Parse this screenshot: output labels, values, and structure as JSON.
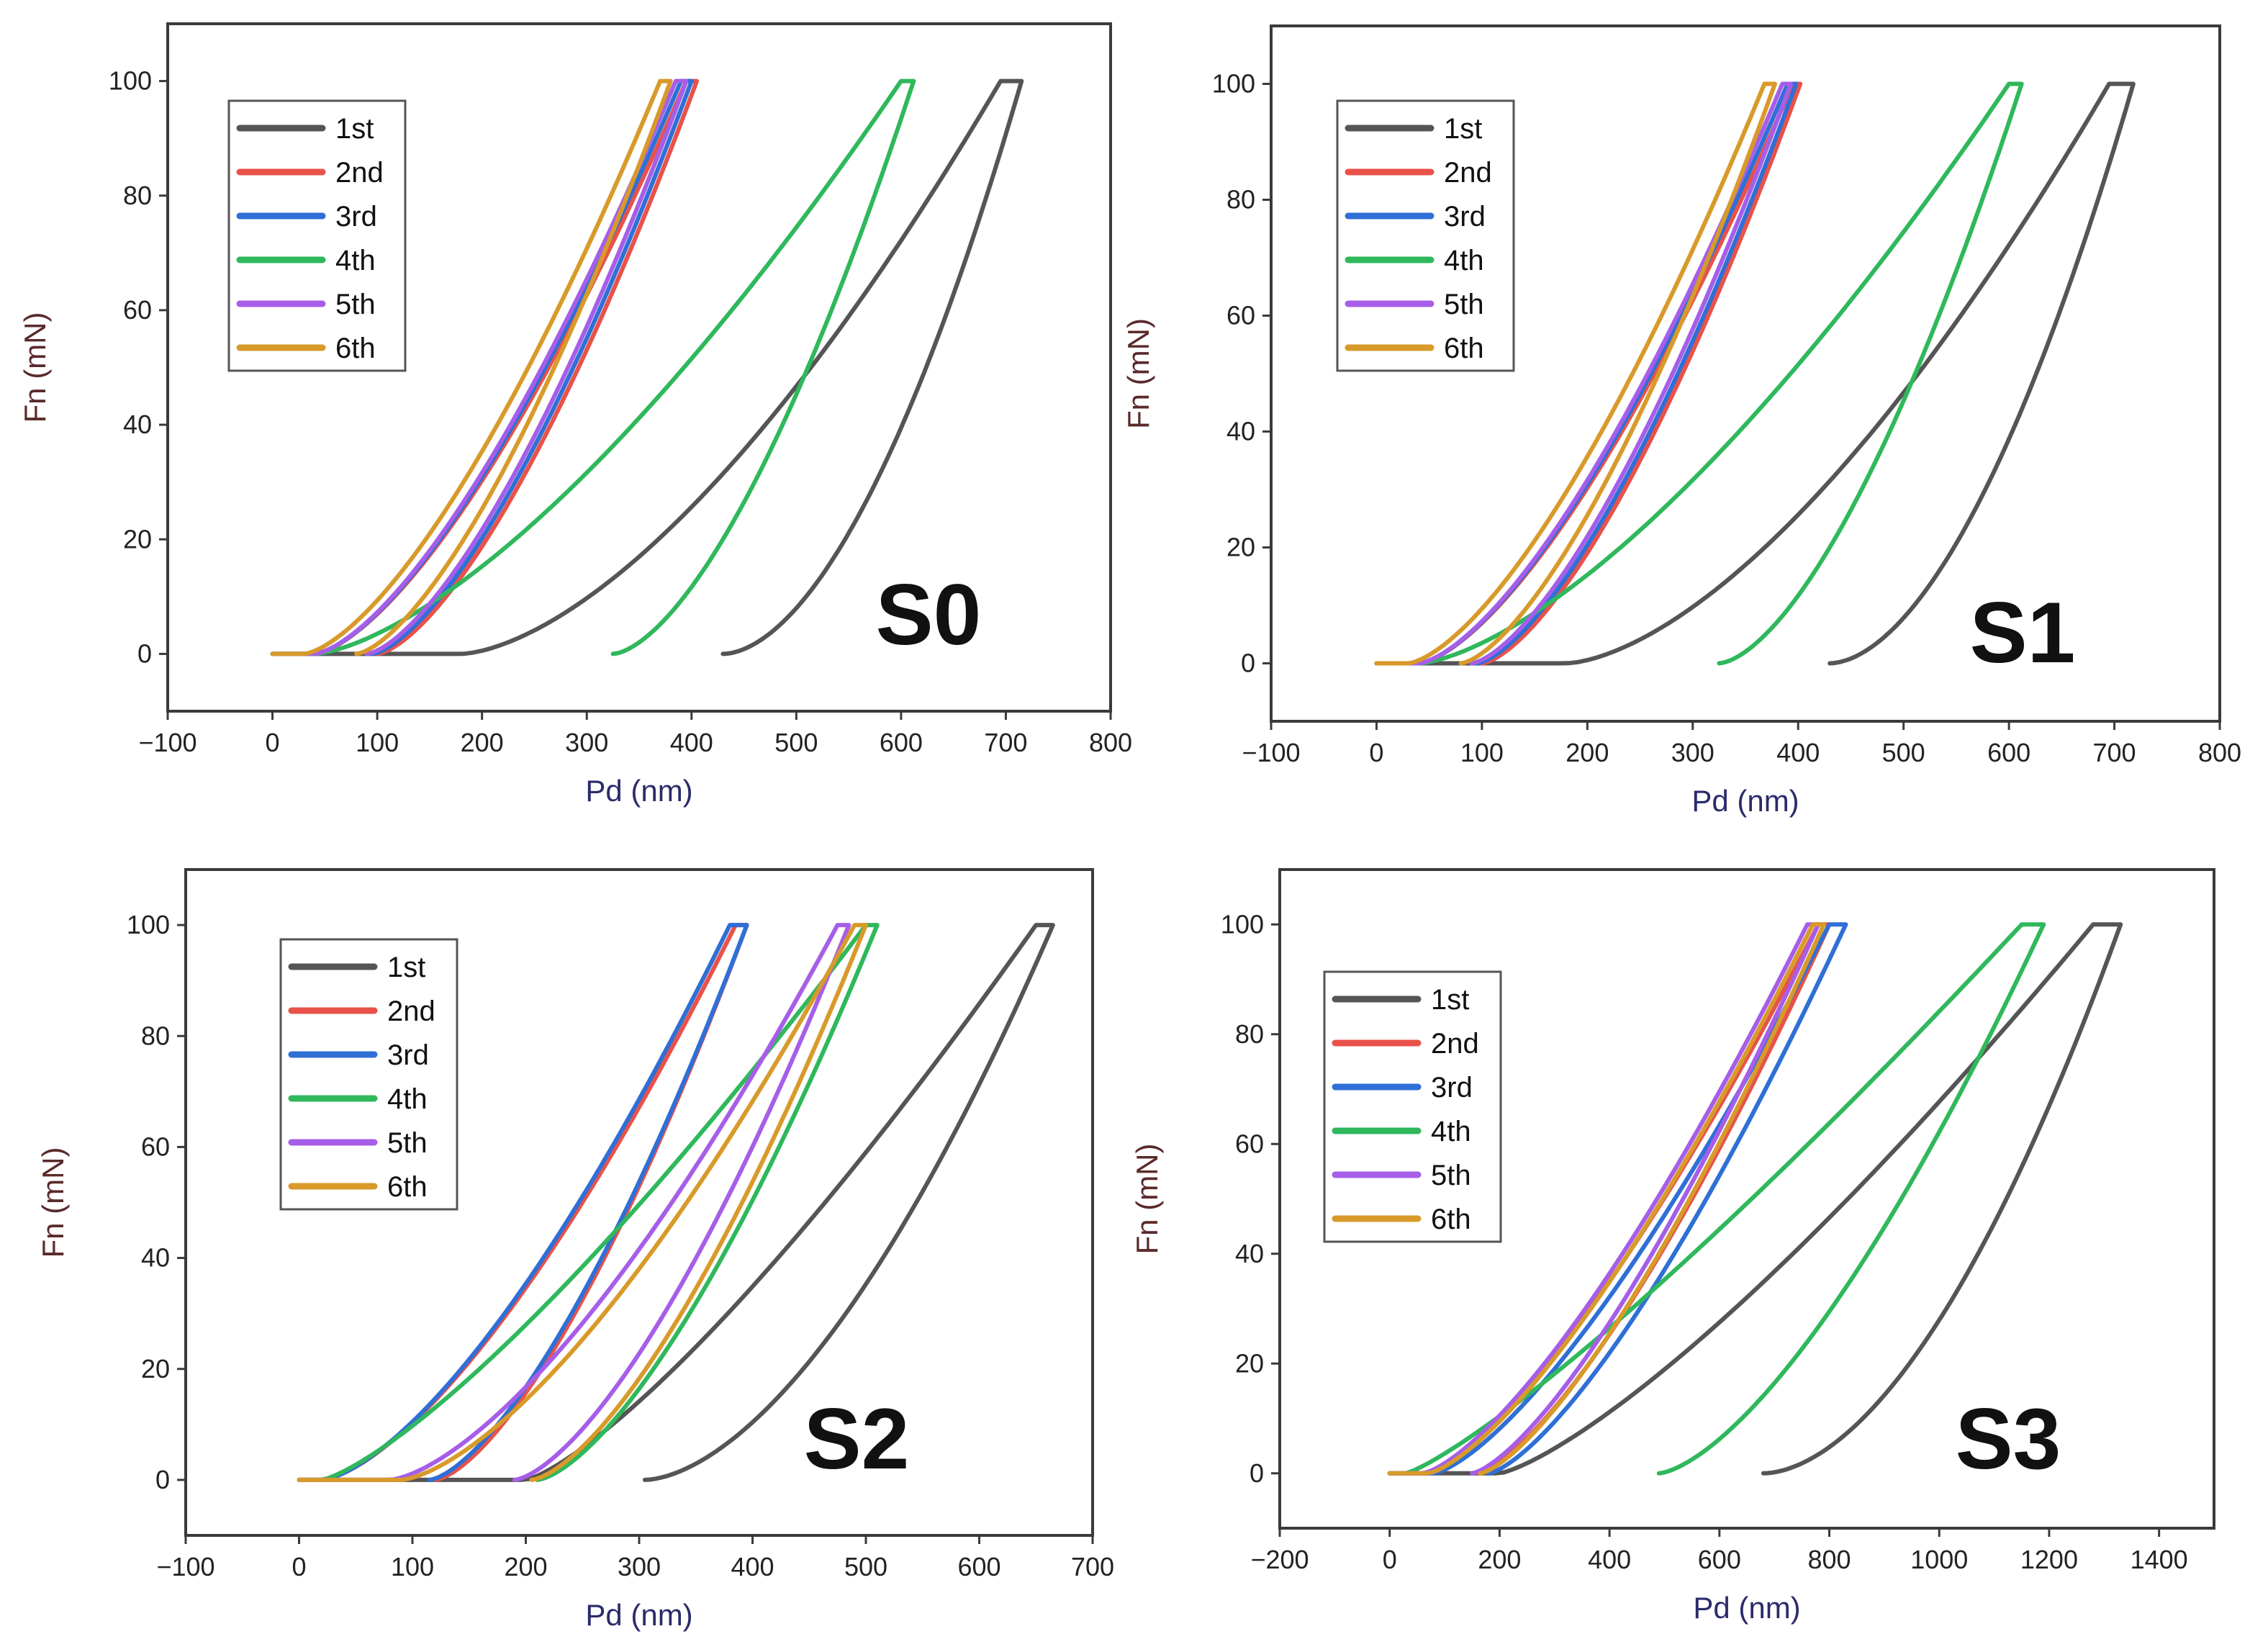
{
  "series_colors": {
    "1st": "#555555",
    "2nd": "#e8524a",
    "3rd": "#2f6fd6",
    "4th": "#2fb85c",
    "5th": "#a65ee8",
    "6th": "#d89a2a"
  },
  "chart_data": [
    {
      "type": "line",
      "title": "S0",
      "xlabel": "Pd (nm)",
      "ylabel": "Fn (mN)",
      "xlim": [
        -100,
        800
      ],
      "ylim": [
        -10,
        110
      ],
      "xticks": [
        -100,
        0,
        100,
        200,
        300,
        400,
        500,
        600,
        700,
        800
      ],
      "xtick_labels": [
        "−100",
        "0",
        "100",
        "200",
        "300",
        "400",
        "500",
        "600",
        "700",
        "800"
      ],
      "yticks": [
        0,
        20,
        40,
        60,
        80,
        100
      ],
      "ytick_labels": [
        "0",
        "20",
        "40",
        "60",
        "80",
        "100"
      ],
      "legend": [
        "1st",
        "2nd",
        "3rd",
        "4th",
        "5th",
        "6th"
      ],
      "series": [
        {
          "name": "1st",
          "load": {
            "d0": 0,
            "flat": 180,
            "dmax": 695,
            "k": 1.6
          },
          "hold_end": 715,
          "unload": {
            "df": 430,
            "k": 1.8
          }
        },
        {
          "name": "2nd",
          "load": {
            "d0": 0,
            "flat": 40,
            "dmax": 395,
            "k": 1.5
          },
          "hold_end": 405,
          "unload": {
            "df": 100,
            "k": 1.5
          }
        },
        {
          "name": "3rd",
          "load": {
            "d0": 0,
            "flat": 40,
            "dmax": 390,
            "k": 1.5
          },
          "hold_end": 400,
          "unload": {
            "df": 95,
            "k": 1.5
          }
        },
        {
          "name": "4th",
          "load": {
            "d0": 0,
            "flat": 40,
            "dmax": 600,
            "k": 1.5
          },
          "hold_end": 612,
          "unload": {
            "df": 325,
            "k": 1.6
          }
        },
        {
          "name": "5th",
          "load": {
            "d0": 0,
            "flat": 40,
            "dmax": 385,
            "k": 1.5
          },
          "hold_end": 395,
          "unload": {
            "df": 90,
            "k": 1.5
          }
        },
        {
          "name": "6th",
          "load": {
            "d0": 0,
            "flat": 30,
            "dmax": 370,
            "k": 1.5
          },
          "hold_end": 380,
          "unload": {
            "df": 80,
            "k": 1.5
          }
        }
      ]
    },
    {
      "type": "line",
      "title": "S1",
      "xlabel": "Pd (nm)",
      "ylabel": "Fn (mN)",
      "xlim": [
        -100,
        800
      ],
      "ylim": [
        -10,
        110
      ],
      "xticks": [
        -100,
        0,
        100,
        200,
        300,
        400,
        500,
        600,
        700,
        800
      ],
      "xtick_labels": [
        "−100",
        "0",
        "100",
        "200",
        "300",
        "400",
        "500",
        "600",
        "700",
        "800"
      ],
      "yticks": [
        0,
        20,
        40,
        60,
        80,
        100
      ],
      "ytick_labels": [
        "0",
        "20",
        "40",
        "60",
        "80",
        "100"
      ],
      "legend": [
        "1st",
        "2nd",
        "3rd",
        "4th",
        "5th",
        "6th"
      ],
      "series": [
        {
          "name": "1st",
          "load": {
            "d0": 0,
            "flat": 180,
            "dmax": 695,
            "k": 1.6
          },
          "hold_end": 718,
          "unload": {
            "df": 430,
            "k": 1.8
          }
        },
        {
          "name": "2nd",
          "load": {
            "d0": 0,
            "flat": 40,
            "dmax": 395,
            "k": 1.5
          },
          "hold_end": 402,
          "unload": {
            "df": 100,
            "k": 1.5
          }
        },
        {
          "name": "3rd",
          "load": {
            "d0": 0,
            "flat": 40,
            "dmax": 390,
            "k": 1.5
          },
          "hold_end": 398,
          "unload": {
            "df": 95,
            "k": 1.5
          }
        },
        {
          "name": "4th",
          "load": {
            "d0": 0,
            "flat": 40,
            "dmax": 600,
            "k": 1.5
          },
          "hold_end": 612,
          "unload": {
            "df": 325,
            "k": 1.6
          }
        },
        {
          "name": "5th",
          "load": {
            "d0": 0,
            "flat": 40,
            "dmax": 385,
            "k": 1.5
          },
          "hold_end": 393,
          "unload": {
            "df": 90,
            "k": 1.5
          }
        },
        {
          "name": "6th",
          "load": {
            "d0": 0,
            "flat": 30,
            "dmax": 368,
            "k": 1.5
          },
          "hold_end": 378,
          "unload": {
            "df": 80,
            "k": 1.5
          }
        }
      ]
    },
    {
      "type": "line",
      "title": "S2",
      "xlabel": "Pd (nm)",
      "ylabel": "Fn (mN)",
      "xlim": [
        -100,
        700
      ],
      "ylim": [
        -10,
        110
      ],
      "xticks": [
        -100,
        0,
        100,
        200,
        300,
        400,
        500,
        600,
        700
      ],
      "xtick_labels": [
        "−100",
        "0",
        "100",
        "200",
        "300",
        "400",
        "500",
        "600",
        "700"
      ],
      "yticks": [
        0,
        20,
        40,
        60,
        80,
        100
      ],
      "ytick_labels": [
        "0",
        "20",
        "40",
        "60",
        "80",
        "100"
      ],
      "legend": [
        "1st",
        "2nd",
        "3rd",
        "4th",
        "5th",
        "6th"
      ],
      "series": [
        {
          "name": "1st",
          "load": {
            "d0": 0,
            "flat": 200,
            "dmax": 650,
            "k": 1.3
          },
          "hold_end": 665,
          "unload": {
            "df": 305,
            "k": 1.7
          }
        },
        {
          "name": "2nd",
          "load": {
            "d0": 0,
            "flat": 20,
            "dmax": 385,
            "k": 1.5
          },
          "hold_end": 395,
          "unload": {
            "df": 120,
            "k": 1.5
          }
        },
        {
          "name": "3rd",
          "load": {
            "d0": 0,
            "flat": 20,
            "dmax": 380,
            "k": 1.5
          },
          "hold_end": 395,
          "unload": {
            "df": 115,
            "k": 1.5
          }
        },
        {
          "name": "4th",
          "load": {
            "d0": 0,
            "flat": 20,
            "dmax": 500,
            "k": 1.3
          },
          "hold_end": 510,
          "unload": {
            "df": 210,
            "k": 1.5
          }
        },
        {
          "name": "5th",
          "load": {
            "d0": 0,
            "flat": 80,
            "dmax": 475,
            "k": 1.5
          },
          "hold_end": 485,
          "unload": {
            "df": 190,
            "k": 1.5
          }
        },
        {
          "name": "6th",
          "load": {
            "d0": 0,
            "flat": 90,
            "dmax": 490,
            "k": 1.5
          },
          "hold_end": 500,
          "unload": {
            "df": 205,
            "k": 1.5
          }
        }
      ]
    },
    {
      "type": "line",
      "title": "S3",
      "xlabel": "Pd (nm)",
      "ylabel": "Fn (mN)",
      "xlim": [
        -200,
        1500
      ],
      "ylim": [
        -10,
        110
      ],
      "xticks": [
        -200,
        0,
        200,
        400,
        600,
        800,
        1000,
        1200,
        1400
      ],
      "xtick_labels": [
        "−200",
        "0",
        "200",
        "400",
        "600",
        "800",
        "1000",
        "1200",
        "1400"
      ],
      "yticks": [
        0,
        20,
        40,
        60,
        80,
        100
      ],
      "ytick_labels": [
        "0",
        "20",
        "40",
        "60",
        "80",
        "100"
      ],
      "legend": [
        "1st",
        "2nd",
        "3rd",
        "4th",
        "5th",
        "6th"
      ],
      "series": [
        {
          "name": "1st",
          "load": {
            "d0": 0,
            "flat": 200,
            "dmax": 1280,
            "k": 1.3
          },
          "hold_end": 1330,
          "unload": {
            "df": 680,
            "k": 1.8
          }
        },
        {
          "name": "2nd",
          "load": {
            "d0": 0,
            "flat": 60,
            "dmax": 780,
            "k": 1.4
          },
          "hold_end": 800,
          "unload": {
            "df": 160,
            "k": 1.4
          }
        },
        {
          "name": "3rd",
          "load": {
            "d0": 0,
            "flat": 80,
            "dmax": 800,
            "k": 1.4
          },
          "hold_end": 830,
          "unload": {
            "df": 180,
            "k": 1.4
          }
        },
        {
          "name": "4th",
          "load": {
            "d0": 0,
            "flat": 30,
            "dmax": 1150,
            "k": 1.2
          },
          "hold_end": 1190,
          "unload": {
            "df": 490,
            "k": 1.5
          }
        },
        {
          "name": "5th",
          "load": {
            "d0": 0,
            "flat": 60,
            "dmax": 760,
            "k": 1.4
          },
          "hold_end": 780,
          "unload": {
            "df": 150,
            "k": 1.4
          }
        },
        {
          "name": "6th",
          "load": {
            "d0": 0,
            "flat": 70,
            "dmax": 770,
            "k": 1.4
          },
          "hold_end": 790,
          "unload": {
            "df": 165,
            "k": 1.4
          }
        }
      ]
    }
  ]
}
